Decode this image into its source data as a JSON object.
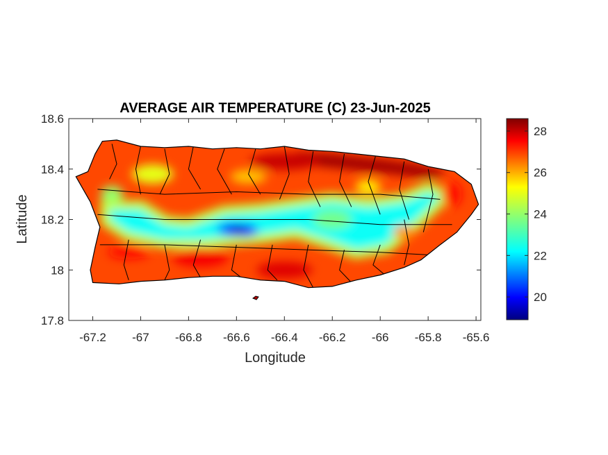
{
  "chart_data": {
    "type": "heatmap",
    "title": "AVERAGE AIR TEMPERATURE (C) 23-Jun-2025",
    "xlabel": "Longitude",
    "ylabel": "Latitude",
    "xlim": [
      -67.3,
      -65.58
    ],
    "ylim": [
      17.8,
      18.6
    ],
    "x_ticks": [
      -67.2,
      -67,
      -66.8,
      -66.6,
      -66.4,
      -66.2,
      -66,
      -65.8,
      -65.6
    ],
    "x_tick_labels": [
      "-67.2",
      "-67",
      "-66.8",
      "-66.6",
      "-66.4",
      "-66.2",
      "-66",
      "-65.8",
      "-65.6"
    ],
    "y_ticks": [
      17.8,
      18,
      18.2,
      18.4,
      18.6
    ],
    "y_tick_labels": [
      "17.8",
      "18",
      "18.2",
      "18.4",
      "18.6"
    ],
    "colorbar": {
      "colormap": "jet",
      "range": [
        18.9,
        28.6
      ],
      "ticks": [
        20,
        22,
        24,
        26,
        28
      ],
      "tick_labels": [
        "20",
        "22",
        "24",
        "26",
        "28"
      ]
    },
    "island_outline": [
      [
        -67.27,
        18.37
      ],
      [
        -67.22,
        18.39
      ],
      [
        -67.19,
        18.46
      ],
      [
        -67.16,
        18.51
      ],
      [
        -67.1,
        18.515
      ],
      [
        -67.0,
        18.49
      ],
      [
        -66.9,
        18.485
      ],
      [
        -66.8,
        18.49
      ],
      [
        -66.7,
        18.48
      ],
      [
        -66.6,
        18.485
      ],
      [
        -66.5,
        18.48
      ],
      [
        -66.4,
        18.49
      ],
      [
        -66.3,
        18.475
      ],
      [
        -66.2,
        18.47
      ],
      [
        -66.1,
        18.46
      ],
      [
        -66.0,
        18.45
      ],
      [
        -65.9,
        18.44
      ],
      [
        -65.8,
        18.41
      ],
      [
        -65.69,
        18.39
      ],
      [
        -65.62,
        18.34
      ],
      [
        -65.59,
        18.26
      ],
      [
        -65.62,
        18.22
      ],
      [
        -65.68,
        18.15
      ],
      [
        -65.75,
        18.1
      ],
      [
        -65.83,
        18.04
      ],
      [
        -65.9,
        18.01
      ],
      [
        -66.0,
        17.98
      ],
      [
        -66.1,
        17.96
      ],
      [
        -66.2,
        17.935
      ],
      [
        -66.3,
        17.93
      ],
      [
        -66.4,
        17.955
      ],
      [
        -66.5,
        17.96
      ],
      [
        -66.6,
        17.975
      ],
      [
        -66.7,
        17.975
      ],
      [
        -66.8,
        17.97
      ],
      [
        -66.9,
        17.96
      ],
      [
        -67.0,
        17.955
      ],
      [
        -67.09,
        17.945
      ],
      [
        -67.2,
        17.95
      ],
      [
        -67.21,
        18.0
      ],
      [
        -67.19,
        18.09
      ],
      [
        -67.17,
        18.17
      ],
      [
        -67.21,
        18.27
      ],
      [
        -67.27,
        18.37
      ]
    ],
    "temperature_bands": [
      {
        "name": "central-mountain-band",
        "path": [
          [
            -67.13,
            18.24
          ],
          [
            -67.0,
            18.24
          ],
          [
            -66.9,
            18.18
          ],
          [
            -66.8,
            18.17
          ],
          [
            -66.65,
            18.22
          ],
          [
            -66.5,
            18.23
          ],
          [
            -66.35,
            18.25
          ],
          [
            -66.2,
            18.27
          ],
          [
            -66.05,
            18.25
          ],
          [
            -65.9,
            18.27
          ],
          [
            -65.8,
            18.31
          ],
          [
            -65.75,
            18.29
          ],
          [
            -65.85,
            18.2
          ],
          [
            -65.98,
            18.1
          ],
          [
            -66.1,
            18.08
          ],
          [
            -66.22,
            18.12
          ],
          [
            -66.35,
            18.16
          ],
          [
            -66.5,
            18.14
          ],
          [
            -66.62,
            18.13
          ],
          [
            -66.75,
            18.12
          ],
          [
            -66.9,
            18.12
          ],
          [
            -67.05,
            18.15
          ],
          [
            -67.13,
            18.2
          ]
        ],
        "value_c": 22.3
      },
      {
        "name": "coldest-core",
        "path": [
          [
            -66.68,
            18.18
          ],
          [
            -66.62,
            18.19
          ],
          [
            -66.53,
            18.18
          ],
          [
            -66.5,
            18.15
          ],
          [
            -66.55,
            18.13
          ],
          [
            -66.63,
            18.135
          ],
          [
            -66.68,
            18.15
          ]
        ],
        "value_c": 19.2
      },
      {
        "name": "northeast-hot-belt",
        "path": [
          [
            -66.35,
            18.47
          ],
          [
            -66.2,
            18.46
          ],
          [
            -66.0,
            18.44
          ],
          [
            -65.85,
            18.42
          ],
          [
            -65.72,
            18.39
          ],
          [
            -65.78,
            18.36
          ],
          [
            -65.95,
            18.38
          ],
          [
            -66.15,
            18.4
          ],
          [
            -66.35,
            18.42
          ]
        ],
        "value_c": 28.3
      }
    ]
  }
}
